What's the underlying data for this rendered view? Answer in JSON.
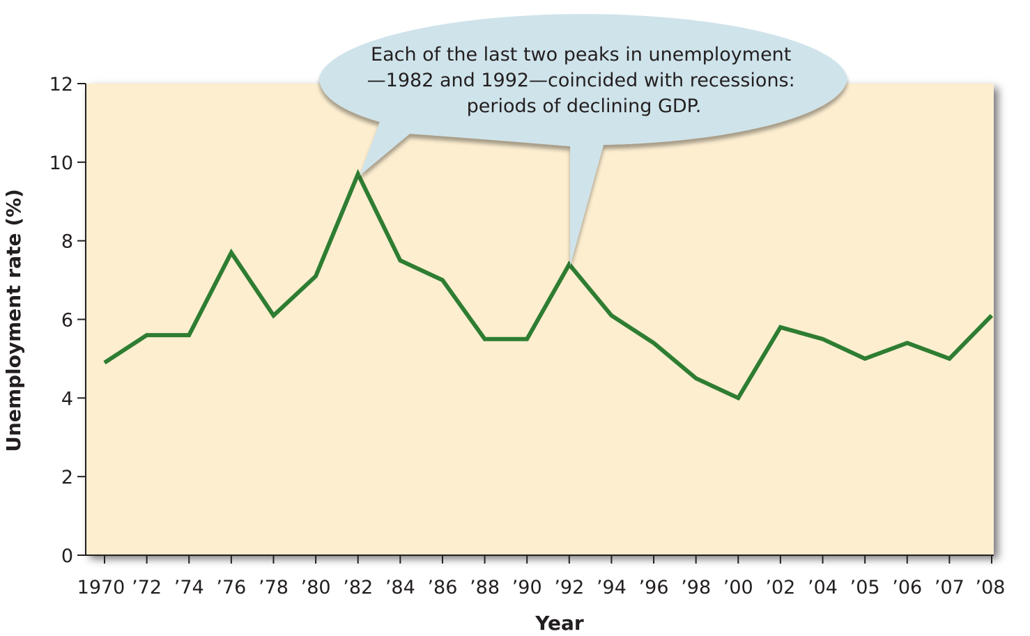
{
  "chart_data": {
    "type": "line",
    "xlabel": "Year",
    "ylabel": "Unemployment rate (%)",
    "ylim": [
      0,
      12
    ],
    "yticks": [
      0,
      2,
      4,
      6,
      8,
      10,
      12
    ],
    "categories": [
      "1970",
      "’72",
      "’74",
      "’76",
      "’78",
      "’80",
      "’82",
      "’84",
      "’86",
      "’88",
      "’90",
      "’92",
      "’94",
      "’96",
      "’98",
      "’00",
      "’02",
      "’04",
      "’05",
      "’06",
      "’07",
      "’08"
    ],
    "values": [
      4.9,
      5.6,
      5.6,
      7.7,
      6.1,
      7.1,
      9.7,
      7.5,
      7.0,
      5.5,
      5.5,
      7.4,
      6.1,
      5.4,
      4.5,
      4.0,
      5.8,
      5.5,
      5.0,
      5.4,
      5.0,
      6.1
    ],
    "series_color": "#2e7d32",
    "plot_background": "#fdeed0",
    "callout": {
      "lines": [
        "Each of the last two peaks in unemployment",
        "—1982 and 1992—coincided with recessions:",
        "periods of declining GDP."
      ],
      "color": "#cfe3ea"
    }
  }
}
